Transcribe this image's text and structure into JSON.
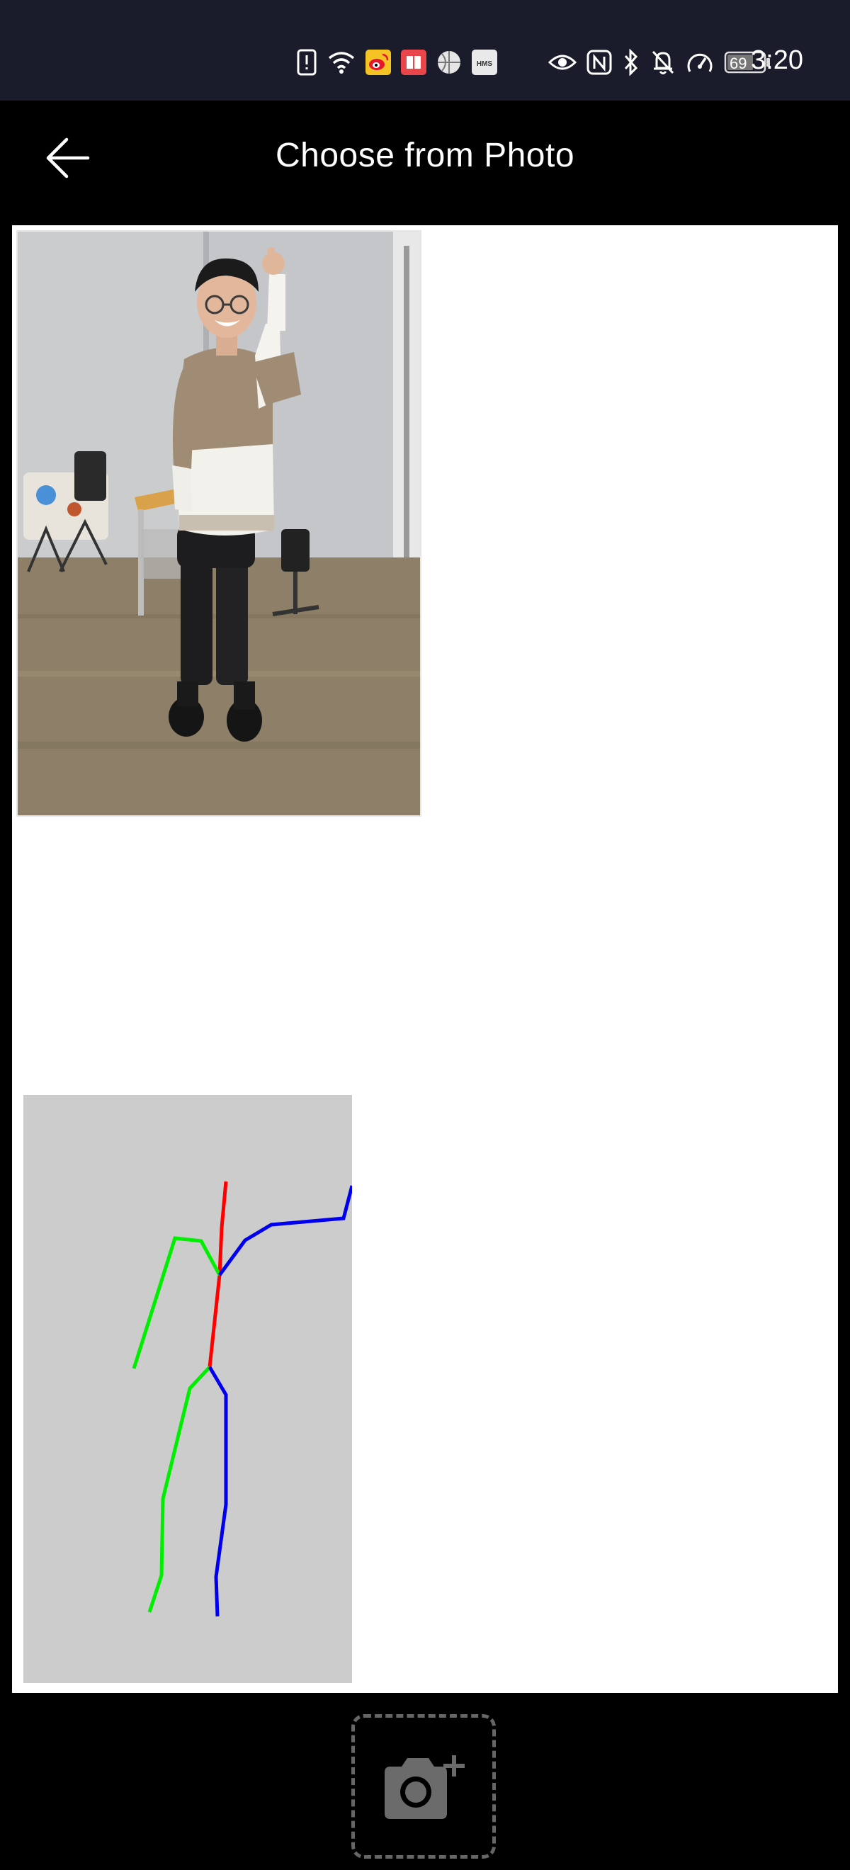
{
  "status_bar": {
    "time": "3:20",
    "battery": "69",
    "hms_label": "HMS",
    "icons": [
      "alert-icon",
      "wifi-icon",
      "weibo-icon",
      "book-icon",
      "app-icon",
      "hms-icon",
      "eye-icon",
      "nfc-icon",
      "bluetooth-icon",
      "bell-off-icon",
      "speed-icon",
      "battery-icon"
    ]
  },
  "header": {
    "title": "Choose from Photo",
    "back_icon": "arrow-left-icon"
  },
  "content": {
    "photo_icon": "person-photo",
    "skeleton_colors": {
      "trunk": "#ff0000",
      "left": "#00ff00",
      "right": "#0000ff",
      "background": "#cccccc"
    }
  },
  "bottom": {
    "camera_icon": "camera-add-icon"
  }
}
